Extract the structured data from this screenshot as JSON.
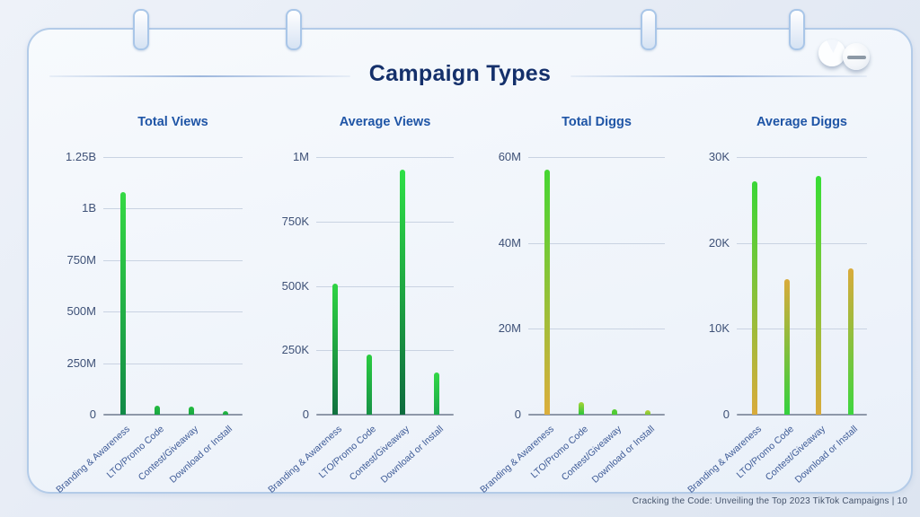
{
  "page": {
    "title": "Campaign Types",
    "footer": "Cracking the Code: Unveiling the Top 2023 TikTok Campaigns |  10"
  },
  "logo": {
    "icon_left": "pacman-circle",
    "icon_right": "dash-circle"
  },
  "colors": {
    "accent_green": "#2bd13f",
    "accent_dark_green": "#128a47",
    "accent_amber": "#d9ab3b",
    "title_navy": "#14306b",
    "chart_title_blue": "#1f55a6",
    "axis_label": "#3e5177",
    "category_label": "#3d5a96",
    "gridline": "#c9d3e2",
    "axis_line": "#8e98a9",
    "card_border": "#b3cbe8"
  },
  "chart_data": [
    {
      "type": "bar",
      "title": "Total Views",
      "categories": [
        "Branding & Awareness",
        "LTO/Promo Code",
        "Contest/Giveaway",
        "Download or Install"
      ],
      "values": [
        1080000000,
        45000000,
        38000000,
        18000000
      ],
      "ylim": [
        0,
        1250000000
      ],
      "yticks": [
        0,
        250000000,
        500000000,
        750000000,
        1000000000,
        1250000000
      ],
      "ytick_labels": [
        "0",
        "250M",
        "500M",
        "750M",
        "1B",
        "1.25B"
      ],
      "grid": true,
      "legend": "none",
      "bar_colors": [
        [
          "#35d944",
          "#128a47"
        ],
        [
          "#24bc3e",
          "#1aa544"
        ],
        [
          "#24bc3e",
          "#1aa544"
        ],
        [
          "#24bc3e",
          "#1aa544"
        ]
      ]
    },
    {
      "type": "bar",
      "title": "Average Views",
      "categories": [
        "Branding & Awareness",
        "LTO/Promo Code",
        "Contest/Giveaway",
        "Download or Install"
      ],
      "values": [
        510000,
        235000,
        950000,
        165000
      ],
      "ylim": [
        0,
        1000000
      ],
      "yticks": [
        0,
        250000,
        500000,
        750000,
        1000000
      ],
      "ytick_labels": [
        "0",
        "250K",
        "500K",
        "750K",
        "1M"
      ],
      "grid": true,
      "legend": "none",
      "bar_colors": [
        [
          "#2fd443",
          "#10713f"
        ],
        [
          "#2acc40",
          "#179246"
        ],
        [
          "#2fe046",
          "#0e6b3e"
        ],
        [
          "#32d846",
          "#1ba94a"
        ]
      ]
    },
    {
      "type": "bar",
      "title": "Total Diggs",
      "categories": [
        "Branding & Awareness",
        "LTO/Promo Code",
        "Contest/Giveaway",
        "Download or Install"
      ],
      "values": [
        57000000,
        2900000,
        1300000,
        1100000
      ],
      "ylim": [
        0,
        60000000
      ],
      "yticks": [
        0,
        20000000,
        40000000,
        60000000
      ],
      "ytick_labels": [
        "0",
        "20M",
        "40M",
        "60M"
      ],
      "grid": true,
      "legend": "none",
      "bar_colors": [
        [
          "#46d632",
          "#dcae3c"
        ],
        [
          "#a6d435",
          "#2fc53c"
        ],
        [
          "#57cd33",
          "#4ecb36"
        ],
        [
          "#b9cf39",
          "#7ac836"
        ]
      ]
    },
    {
      "type": "bar",
      "title": "Average Diggs",
      "categories": [
        "Branding & Awareness",
        "LTO/Promo Code",
        "Contest/Giveaway",
        "Download or Install"
      ],
      "values": [
        27200,
        15800,
        27800,
        17000
      ],
      "ylim": [
        0,
        30000
      ],
      "yticks": [
        0,
        10000,
        20000,
        30000
      ],
      "ytick_labels": [
        "0",
        "10K",
        "20K",
        "30K"
      ],
      "grid": true,
      "legend": "none",
      "bar_colors": [
        [
          "#3ad636",
          "#d9ab3b"
        ],
        [
          "#d9ab3b",
          "#34d13e"
        ],
        [
          "#36de35",
          "#d9ab3b"
        ],
        [
          "#d9ab3b",
          "#3ed63f"
        ]
      ]
    }
  ]
}
